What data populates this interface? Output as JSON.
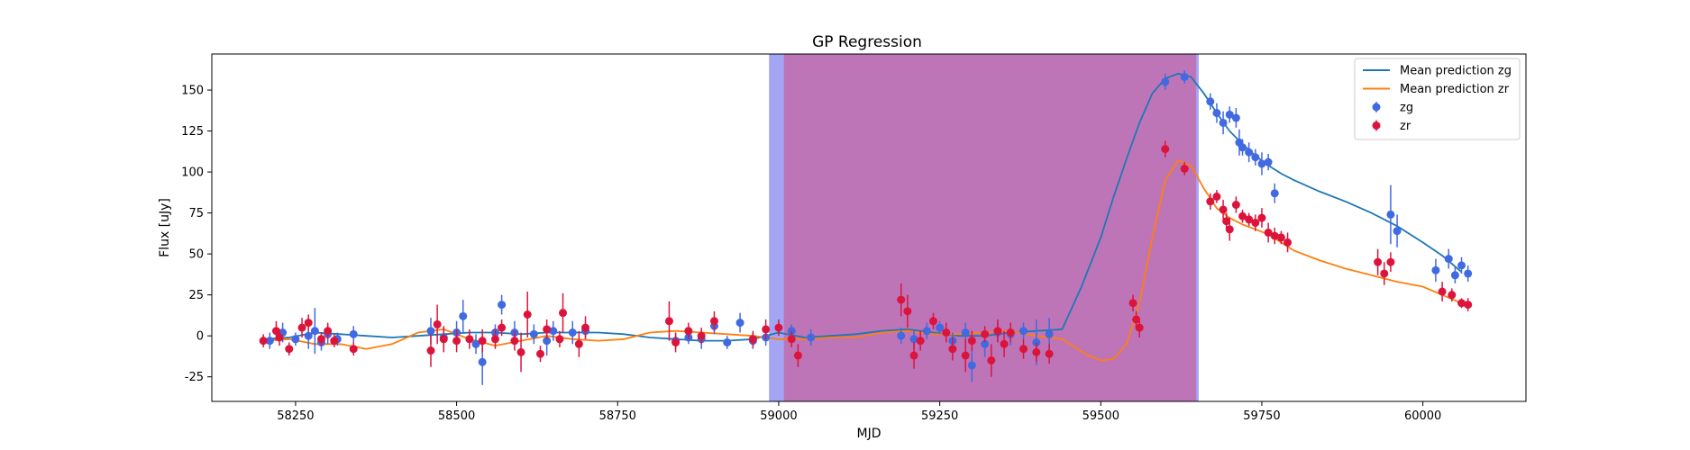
{
  "chart_data": {
    "type": "scatter",
    "title": "GP Regression",
    "xlabel": "MJD",
    "ylabel": "Flux [uJy]",
    "xlim": [
      58120,
      60160
    ],
    "ylim": [
      -40,
      172
    ],
    "x_ticks": [
      58250,
      58500,
      58750,
      59000,
      59250,
      59500,
      59750,
      60000
    ],
    "y_ticks": [
      -25,
      0,
      25,
      50,
      75,
      100,
      125,
      150
    ],
    "legend_position": "top-right",
    "grid": false,
    "shaded_regions": [
      {
        "x0": 58985,
        "x1": 59652,
        "color": "#7d7df0",
        "label": "zg"
      },
      {
        "x0": 59008,
        "x1": 59648,
        "color": "#c8619e",
        "label": "zr"
      }
    ],
    "lines": [
      {
        "name": "Mean prediction zg",
        "color": "#1f77b4",
        "x": [
          58200,
          58240,
          58280,
          58320,
          58360,
          58400,
          58440,
          58480,
          58520,
          58560,
          58600,
          58640,
          58680,
          58720,
          58760,
          58800,
          58840,
          58880,
          58920,
          58960,
          59000,
          59040,
          59080,
          59120,
          59160,
          59200,
          59240,
          59280,
          59320,
          59360,
          59400,
          59440,
          59470,
          59500,
          59520,
          59540,
          59560,
          59580,
          59600,
          59620,
          59640,
          59660,
          59680,
          59700,
          59720,
          59740,
          59760,
          59780,
          59800,
          59840,
          59880,
          59920,
          59960,
          60000,
          60030,
          60060
        ],
        "y": [
          -2,
          -1,
          2,
          1,
          0,
          -1,
          0,
          1,
          2,
          2,
          1,
          2,
          2,
          2,
          1,
          -1,
          -2,
          -3,
          -3,
          -2,
          2,
          -1,
          0,
          1,
          3,
          4,
          2,
          0,
          0,
          2,
          3,
          4,
          30,
          60,
          85,
          108,
          130,
          148,
          157,
          160,
          158,
          148,
          136,
          125,
          117,
          110,
          104,
          99,
          95,
          88,
          82,
          75,
          67,
          57,
          49,
          39
        ]
      },
      {
        "name": "Mean prediction zr",
        "color": "#ff7f0e",
        "x": [
          58200,
          58240,
          58280,
          58320,
          58360,
          58400,
          58440,
          58480,
          58520,
          58560,
          58600,
          58640,
          58680,
          58720,
          58760,
          58800,
          58840,
          58880,
          58920,
          58960,
          59000,
          59040,
          59080,
          59120,
          59160,
          59200,
          59240,
          59280,
          59320,
          59360,
          59400,
          59440,
          59480,
          59500,
          59520,
          59540,
          59560,
          59580,
          59600,
          59620,
          59640,
          59660,
          59680,
          59700,
          59720,
          59740,
          59760,
          59780,
          59800,
          59840,
          59880,
          59920,
          59960,
          60000,
          60030,
          60060
        ],
        "y": [
          -3,
          -2,
          -5,
          -5,
          -8,
          -5,
          2,
          4,
          -2,
          -6,
          -3,
          0,
          -2,
          -3,
          -2,
          2,
          3,
          2,
          1,
          0,
          -2,
          -2,
          -1,
          -1,
          2,
          3,
          1,
          1,
          2,
          3,
          0,
          -2,
          -12,
          -15,
          -14,
          -5,
          20,
          60,
          95,
          107,
          104,
          90,
          78,
          72,
          68,
          65,
          62,
          57,
          52,
          46,
          41,
          37,
          33,
          30,
          25,
          20
        ]
      }
    ],
    "series": [
      {
        "name": "zg",
        "color": "#4169e1",
        "points": [
          [
            58210,
            -3,
            5
          ],
          [
            58230,
            2,
            6
          ],
          [
            58250,
            -2,
            4
          ],
          [
            58270,
            0,
            8
          ],
          [
            58280,
            3,
            14
          ],
          [
            58290,
            -4,
            5
          ],
          [
            58300,
            1,
            6
          ],
          [
            58315,
            -2,
            4
          ],
          [
            58340,
            1,
            5
          ],
          [
            58460,
            3,
            8
          ],
          [
            58480,
            -1,
            6
          ],
          [
            58500,
            2,
            7
          ],
          [
            58510,
            12,
            10
          ],
          [
            58530,
            -5,
            6
          ],
          [
            58540,
            -16,
            14
          ],
          [
            58560,
            2,
            5
          ],
          [
            58570,
            19,
            6
          ],
          [
            58590,
            2,
            7
          ],
          [
            58620,
            1,
            6
          ],
          [
            58640,
            -3,
            9
          ],
          [
            58650,
            3,
            6
          ],
          [
            58680,
            2,
            7
          ],
          [
            58700,
            3,
            5
          ],
          [
            58840,
            -3,
            5
          ],
          [
            58860,
            -1,
            4
          ],
          [
            58880,
            -2,
            6
          ],
          [
            58900,
            6,
            5
          ],
          [
            58920,
            -4,
            4
          ],
          [
            58940,
            8,
            6
          ],
          [
            58960,
            -3,
            5
          ],
          [
            58980,
            -1,
            5
          ],
          [
            59020,
            3,
            4
          ],
          [
            59050,
            -1,
            5
          ],
          [
            59190,
            0,
            5
          ],
          [
            59210,
            -2,
            6
          ],
          [
            59230,
            3,
            5
          ],
          [
            59250,
            5,
            4
          ],
          [
            59270,
            -3,
            5
          ],
          [
            59290,
            2,
            6
          ],
          [
            59300,
            -18,
            10
          ],
          [
            59320,
            -5,
            8
          ],
          [
            59340,
            2,
            6
          ],
          [
            59360,
            1,
            7
          ],
          [
            59380,
            3,
            5
          ],
          [
            59400,
            -4,
            14
          ],
          [
            59420,
            1,
            10
          ],
          [
            59600,
            155,
            5
          ],
          [
            59630,
            158,
            4
          ],
          [
            59670,
            143,
            5
          ],
          [
            59680,
            136,
            6
          ],
          [
            59690,
            130,
            7
          ],
          [
            59700,
            135,
            5
          ],
          [
            59710,
            133,
            6
          ],
          [
            59715,
            118,
            8
          ],
          [
            59720,
            115,
            5
          ],
          [
            59730,
            112,
            6
          ],
          [
            59740,
            109,
            5
          ],
          [
            59750,
            105,
            7
          ],
          [
            59760,
            106,
            5
          ],
          [
            59770,
            87,
            6
          ],
          [
            59950,
            74,
            18
          ],
          [
            59960,
            64,
            10
          ],
          [
            60020,
            40,
            7
          ],
          [
            60040,
            47,
            6
          ],
          [
            60050,
            37,
            5
          ],
          [
            60060,
            43,
            5
          ],
          [
            60070,
            38,
            5
          ]
        ]
      },
      {
        "name": "zr",
        "color": "#dc143c",
        "points": [
          [
            58200,
            -3,
            4
          ],
          [
            58220,
            3,
            6
          ],
          [
            58225,
            -1,
            5
          ],
          [
            58240,
            -8,
            4
          ],
          [
            58260,
            5,
            6
          ],
          [
            58270,
            8,
            5
          ],
          [
            58290,
            -2,
            4
          ],
          [
            58300,
            3,
            5
          ],
          [
            58310,
            -3,
            4
          ],
          [
            58340,
            -8,
            4
          ],
          [
            58460,
            -9,
            10
          ],
          [
            58470,
            7,
            12
          ],
          [
            58480,
            -2,
            8
          ],
          [
            58500,
            -3,
            7
          ],
          [
            58520,
            -2,
            6
          ],
          [
            58540,
            -3,
            7
          ],
          [
            58560,
            -2,
            6
          ],
          [
            58570,
            5,
            5
          ],
          [
            58590,
            -3,
            6
          ],
          [
            58600,
            -10,
            12
          ],
          [
            58610,
            13,
            14
          ],
          [
            58630,
            -11,
            5
          ],
          [
            58640,
            4,
            6
          ],
          [
            58660,
            -2,
            5
          ],
          [
            58665,
            14,
            12
          ],
          [
            58690,
            -5,
            8
          ],
          [
            58700,
            5,
            7
          ],
          [
            58830,
            9,
            12
          ],
          [
            58840,
            -4,
            6
          ],
          [
            58860,
            3,
            5
          ],
          [
            58880,
            0,
            5
          ],
          [
            58900,
            9,
            6
          ],
          [
            58960,
            -2,
            5
          ],
          [
            58980,
            4,
            6
          ],
          [
            59000,
            5,
            5
          ],
          [
            59020,
            -2,
            5
          ],
          [
            59030,
            -12,
            7
          ],
          [
            59190,
            22,
            10
          ],
          [
            59200,
            15,
            10
          ],
          [
            59210,
            -12,
            8
          ],
          [
            59220,
            -3,
            6
          ],
          [
            59240,
            9,
            5
          ],
          [
            59260,
            2,
            6
          ],
          [
            59270,
            -8,
            7
          ],
          [
            59290,
            -12,
            10
          ],
          [
            59300,
            -3,
            6
          ],
          [
            59320,
            1,
            5
          ],
          [
            59330,
            -15,
            10
          ],
          [
            59340,
            3,
            7
          ],
          [
            59350,
            -5,
            8
          ],
          [
            59360,
            2,
            6
          ],
          [
            59380,
            -8,
            6
          ],
          [
            59400,
            -10,
            6
          ],
          [
            59420,
            -11,
            6
          ],
          [
            59550,
            20,
            5
          ],
          [
            59555,
            10,
            5
          ],
          [
            59560,
            5,
            6
          ],
          [
            59600,
            114,
            5
          ],
          [
            59630,
            102,
            4
          ],
          [
            59670,
            82,
            5
          ],
          [
            59680,
            85,
            4
          ],
          [
            59690,
            77,
            6
          ],
          [
            59695,
            70,
            5
          ],
          [
            59700,
            65,
            7
          ],
          [
            59710,
            80,
            5
          ],
          [
            59720,
            73,
            4
          ],
          [
            59730,
            71,
            4
          ],
          [
            59740,
            69,
            5
          ],
          [
            59750,
            72,
            6
          ],
          [
            59760,
            63,
            6
          ],
          [
            59770,
            61,
            5
          ],
          [
            59780,
            60,
            4
          ],
          [
            59790,
            57,
            6
          ],
          [
            59930,
            45,
            8
          ],
          [
            59940,
            38,
            7
          ],
          [
            59950,
            45,
            6
          ],
          [
            60030,
            27,
            6
          ],
          [
            60045,
            25,
            4
          ],
          [
            60060,
            20,
            3
          ],
          [
            60070,
            19,
            4
          ]
        ]
      }
    ]
  }
}
